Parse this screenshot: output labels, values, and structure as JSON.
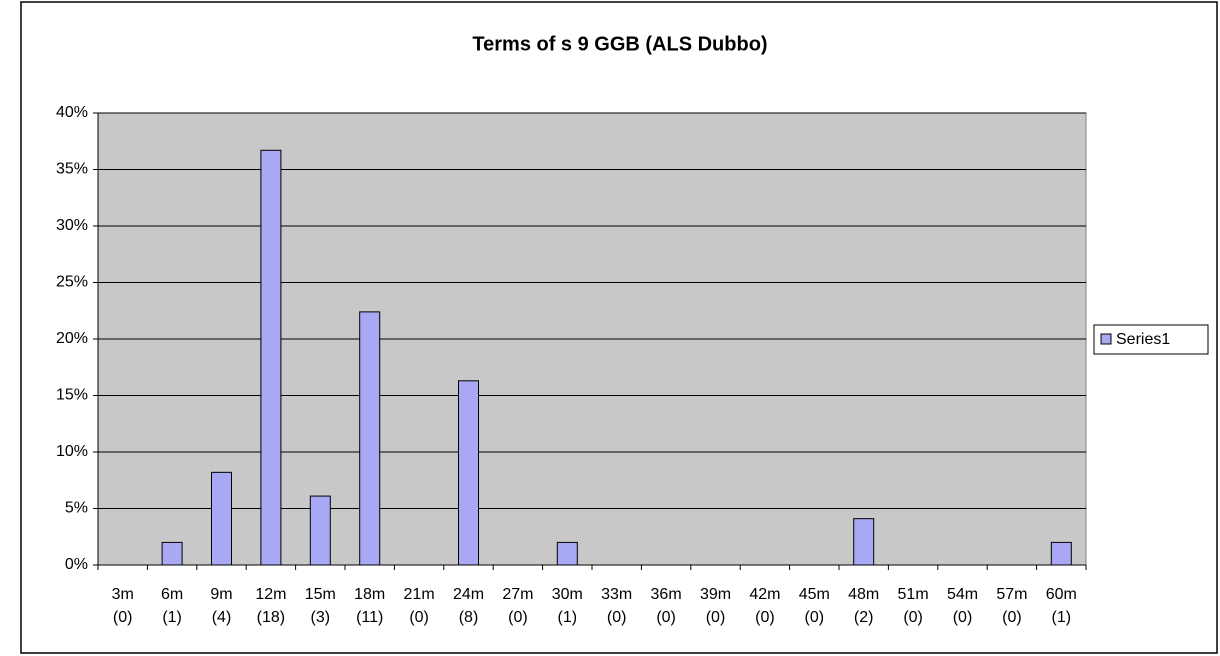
{
  "chart_data": {
    "type": "bar",
    "title": "Terms of s 9 GGB (ALS Dubbo)",
    "categories": [
      [
        "3m",
        "(0)"
      ],
      [
        "6m",
        "(1)"
      ],
      [
        "9m",
        "(4)"
      ],
      [
        "12m",
        "(18)"
      ],
      [
        "15m",
        "(3)"
      ],
      [
        "18m",
        "(11)"
      ],
      [
        "21m",
        "(0)"
      ],
      [
        "24m",
        "(8)"
      ],
      [
        "27m",
        "(0)"
      ],
      [
        "30m",
        "(1)"
      ],
      [
        "33m",
        "(0)"
      ],
      [
        "36m",
        "(0)"
      ],
      [
        "39m",
        "(0)"
      ],
      [
        "42m",
        "(0)"
      ],
      [
        "45m",
        "(0)"
      ],
      [
        "48m",
        "(2)"
      ],
      [
        "51m",
        "(0)"
      ],
      [
        "54m",
        "(0)"
      ],
      [
        "57m",
        "(0)"
      ],
      [
        "60m",
        "(1)"
      ]
    ],
    "series": [
      {
        "name": "Series1",
        "color": "#a8a8f4",
        "values": [
          0,
          2.0,
          8.2,
          36.7,
          6.1,
          22.4,
          0,
          16.3,
          0,
          2.0,
          0,
          0,
          0,
          0,
          0,
          4.1,
          0,
          0,
          0,
          2.0
        ]
      }
    ],
    "ylim": [
      0,
      40
    ],
    "yticks": [
      {
        "value": 0,
        "label": "0%"
      },
      {
        "value": 5,
        "label": "5%"
      },
      {
        "value": 10,
        "label": "10%"
      },
      {
        "value": 15,
        "label": "15%"
      },
      {
        "value": 20,
        "label": "20%"
      },
      {
        "value": 25,
        "label": "25%"
      },
      {
        "value": 30,
        "label": "30%"
      },
      {
        "value": 35,
        "label": "35%"
      },
      {
        "value": 40,
        "label": "40%"
      }
    ],
    "grid": true,
    "legend": "right"
  }
}
